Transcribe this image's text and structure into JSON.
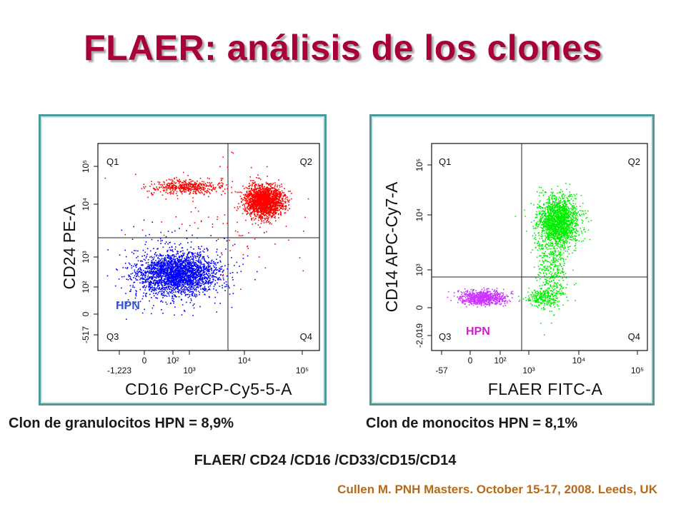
{
  "title": "FLAER: análisis de los clones",
  "chart_data": [
    {
      "type": "scatter",
      "xlabel": "CD16 PerCP-Cy5-5-A",
      "ylabel": "CD24 PE-A",
      "x_ticks": [
        "-1,223",
        "0",
        "10²",
        "10³",
        "10⁴",
        "10⁵"
      ],
      "y_ticks": [
        "-517",
        "0",
        "10²",
        "10³",
        "10⁴",
        "10⁵"
      ],
      "quadrants": [
        "Q1",
        "Q2",
        "Q3",
        "Q4"
      ],
      "annotation": "HPN",
      "colors": {
        "cd24_pos": "#ff0000",
        "cd24_neg": "#0000ff",
        "annotation": "#3355cc"
      },
      "caption": "Clon de granulocitos HPN = 8,9%"
    },
    {
      "type": "scatter",
      "xlabel": "FLAER FITC-A",
      "ylabel": "CD14 APC-Cy7-A",
      "x_ticks": [
        "-57",
        "0",
        "10²",
        "10³",
        "10⁴",
        "10⁵"
      ],
      "y_ticks": [
        "-2,019",
        "0",
        "10³",
        "10⁴",
        "10⁵"
      ],
      "quadrants": [
        "Q1",
        "Q2",
        "Q3",
        "Q4"
      ],
      "annotation": "HPN",
      "colors": {
        "flaer_pos": "#00ee00",
        "flaer_neg": "#cc33ff",
        "annotation": "#cc22cc"
      },
      "caption": "Clon de monocitos HPN = 8,1%"
    }
  ],
  "markers": "FLAER/ CD24 /CD16 /CD33/CD15/CD14",
  "citation": "Cullen M.  PNH Masters. October 15-17, 2008. Leeds, UK"
}
